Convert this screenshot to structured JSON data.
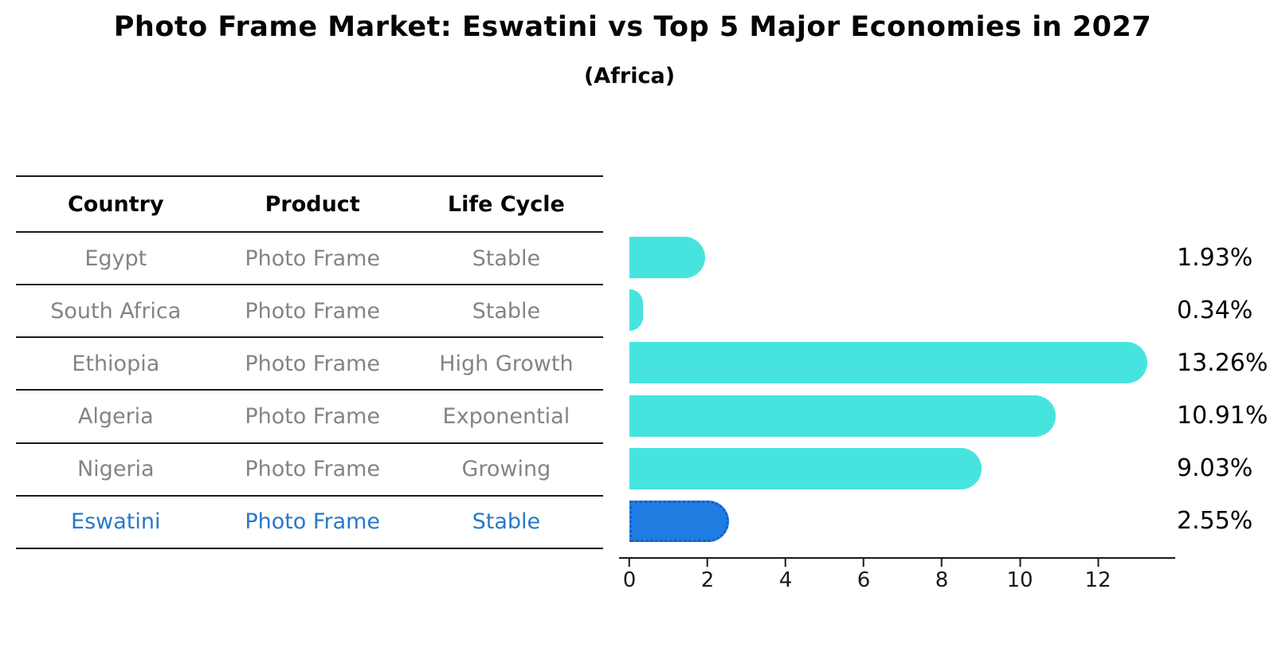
{
  "header": {
    "title": "Photo Frame Market: Eswatini vs Top 5 Major Economies in 2027",
    "subtitle": "(Africa)"
  },
  "table": {
    "headers": [
      "Country",
      "Product",
      "Life Cycle"
    ],
    "rows": [
      {
        "country": "Egypt",
        "product": "Photo Frame",
        "life_cycle": "Stable"
      },
      {
        "country": "South Africa",
        "product": "Photo Frame",
        "life_cycle": "Stable"
      },
      {
        "country": "Ethiopia",
        "product": "Photo Frame",
        "life_cycle": "High Growth"
      },
      {
        "country": "Algeria",
        "product": "Photo Frame",
        "life_cycle": "Exponential"
      },
      {
        "country": "Nigeria",
        "product": "Photo Frame",
        "life_cycle": "Growing"
      },
      {
        "country": "Eswatini",
        "product": "Photo Frame",
        "life_cycle": "Stable"
      }
    ],
    "highlight_row": "Eswatini"
  },
  "chart_data": {
    "type": "bar",
    "orientation": "horizontal",
    "title": "Photo Frame Market: Eswatini vs Top 5 Major Economies in 2027",
    "subtitle": "(Africa)",
    "categories": [
      "Egypt",
      "South Africa",
      "Ethiopia",
      "Algeria",
      "Nigeria",
      "Eswatini"
    ],
    "values": [
      1.93,
      0.34,
      13.26,
      10.91,
      9.03,
      2.55
    ],
    "value_labels": [
      "1.93%",
      "0.34%",
      "13.26%",
      "10.91%",
      "9.03%",
      "2.55%"
    ],
    "xlim": [
      0,
      14
    ],
    "x_ticks": [
      0,
      2,
      4,
      6,
      8,
      10,
      12
    ],
    "highlight_index": 5,
    "grid": false,
    "legend": false,
    "colors": {
      "bar": "#47E4DF",
      "highlight_bar": "#1F7CE0",
      "highlight_border": "#1160C4",
      "table_text": "#848484",
      "highlight_text": "#2878CB",
      "axis": "#1a1a1a",
      "title_text": "#050505"
    }
  }
}
